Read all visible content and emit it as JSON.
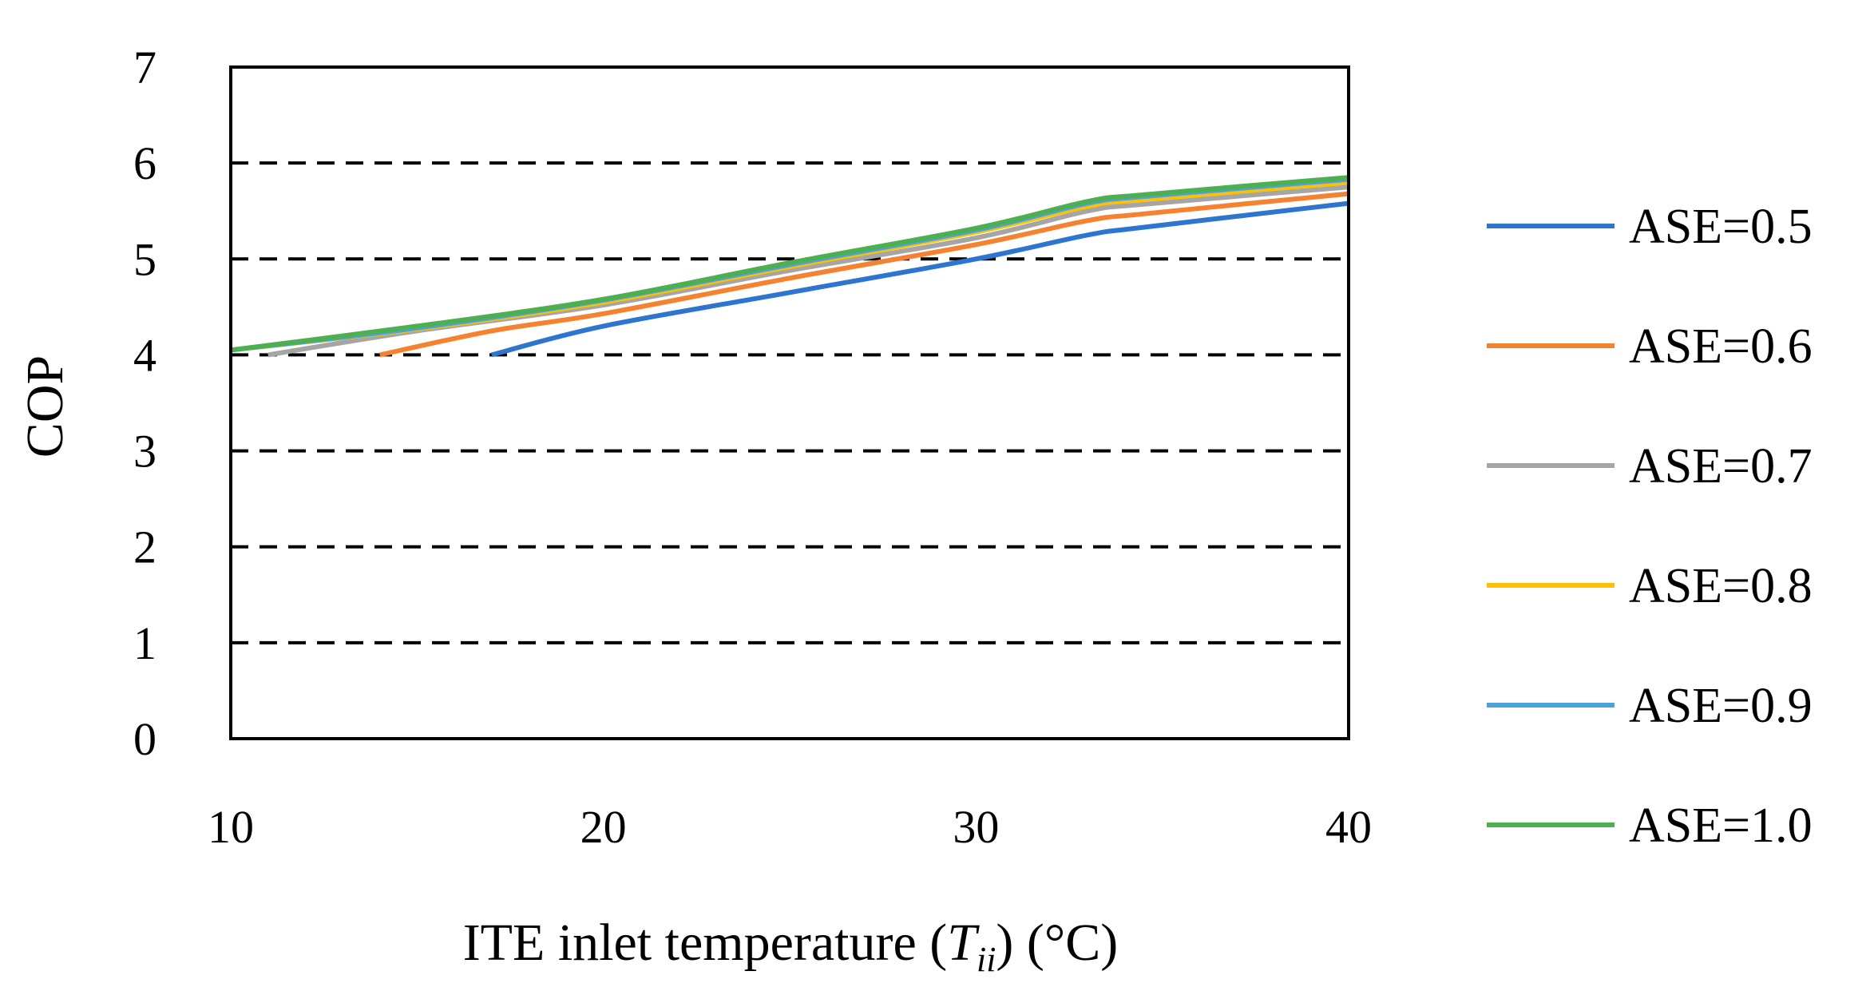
{
  "chart_data": {
    "type": "line",
    "title": "",
    "xlabel": {
      "prefix": "ITE inlet temperature (",
      "symbol": "T",
      "subscript": "ii",
      "suffix": ") (°C)"
    },
    "ylabel": "COP",
    "xlim": [
      10,
      40
    ],
    "ylim": [
      0,
      7
    ],
    "xticks": [
      "10",
      "20",
      "30",
      "40"
    ],
    "yticks": [
      "0",
      "1",
      "2",
      "3",
      "4",
      "5",
      "6",
      "7"
    ],
    "gridlines": "horizontal dashed",
    "legend_position": "right",
    "series": [
      {
        "name": "ASE=0.5",
        "color": "#2E75D0",
        "x": [
          17,
          20,
          25,
          30,
          33,
          34.5,
          40
        ],
        "y": [
          4.0,
          4.3,
          4.65,
          5.0,
          5.25,
          5.33,
          5.58
        ]
      },
      {
        "name": "ASE=0.6",
        "color": "#F58231",
        "x": [
          14,
          17,
          20,
          25,
          30,
          33,
          34.5,
          40
        ],
        "y": [
          4.0,
          4.25,
          4.43,
          4.8,
          5.15,
          5.4,
          5.47,
          5.68
        ]
      },
      {
        "name": "ASE=0.7",
        "color": "#A5A5A5",
        "x": [
          11,
          15,
          20,
          25,
          30,
          33,
          34.5,
          40
        ],
        "y": [
          4.0,
          4.25,
          4.52,
          4.88,
          5.22,
          5.5,
          5.57,
          5.75
        ]
      },
      {
        "name": "ASE=0.8",
        "color": "#FFC000",
        "x": [
          10,
          15,
          20,
          25,
          30,
          33,
          34.5,
          40
        ],
        "y": [
          4.05,
          4.27,
          4.55,
          4.92,
          5.28,
          5.55,
          5.62,
          5.8
        ]
      },
      {
        "name": "ASE=0.9",
        "color": "#4BA3DC",
        "x": [
          10,
          15,
          20,
          25,
          30,
          33,
          34.5,
          40
        ],
        "y": [
          4.05,
          4.28,
          4.57,
          4.94,
          5.3,
          5.58,
          5.65,
          5.83
        ]
      },
      {
        "name": "ASE=1.0",
        "color": "#4CAF50",
        "x": [
          10,
          15,
          20,
          25,
          30,
          33,
          34.5,
          40
        ],
        "y": [
          4.05,
          4.3,
          4.58,
          4.96,
          5.32,
          5.6,
          5.67,
          5.85
        ]
      }
    ]
  }
}
